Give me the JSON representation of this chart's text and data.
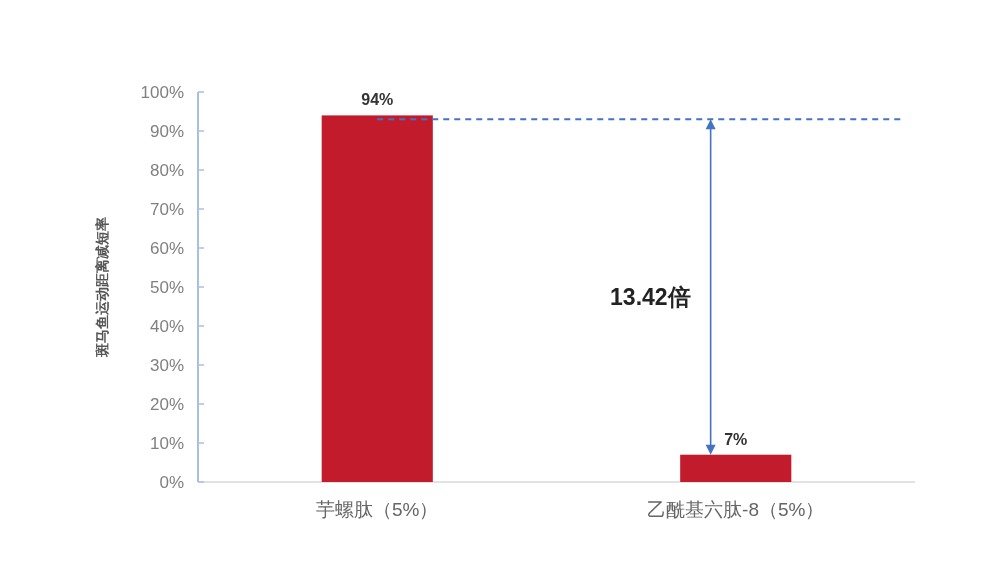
{
  "chart_data": {
    "type": "bar",
    "ylabel": "斑马鱼运动距离减短率",
    "categories": [
      "芋螺肽（5%）",
      "乙酰基六肽-8（5%）"
    ],
    "values": [
      94,
      7
    ],
    "color": "#c11b2c",
    "value_labels": [
      "94%",
      "7%"
    ],
    "ylim": [
      0,
      100
    ],
    "yticks": [
      {
        "value": 0,
        "label": "0%"
      },
      {
        "value": 10,
        "label": "10%"
      },
      {
        "value": 20,
        "label": "20%"
      },
      {
        "value": 30,
        "label": "30%"
      },
      {
        "value": 40,
        "label": "40%"
      },
      {
        "value": 50,
        "label": "50%"
      },
      {
        "value": 60,
        "label": "60%"
      },
      {
        "value": 70,
        "label": "70%"
      },
      {
        "value": 80,
        "label": "80%"
      },
      {
        "value": 90,
        "label": "90%"
      },
      {
        "value": 100,
        "label": "100%"
      }
    ],
    "ref_lines": [
      {
        "axis": "y",
        "value": 93,
        "color": "#4472c4",
        "line_style": "dashed"
      }
    ],
    "annotations": [
      "13.42倍"
    ],
    "grid": false
  }
}
